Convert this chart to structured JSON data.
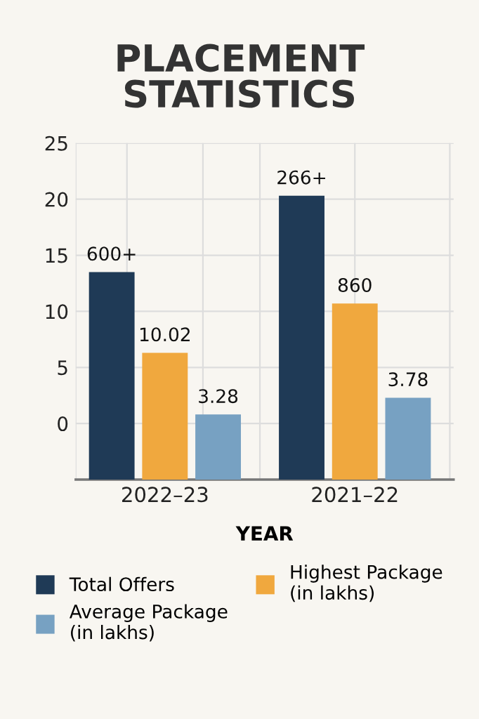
{
  "chart_data": {
    "type": "bar",
    "title": "PLACEMENT\nSTATISTICS",
    "xlabel": "YEAR",
    "categories": [
      "2022–23",
      "2021–22"
    ],
    "series": [
      {
        "name": "Total Offers",
        "color": "#1f3a56",
        "values": [
          18.5,
          25.3
        ],
        "base": [
          -5,
          -5
        ]
      },
      {
        "name": "Highest Package\n(in lakhs)",
        "color": "#f0a83e",
        "values": [
          11.3,
          15.7
        ],
        "base": [
          -5,
          -5
        ]
      },
      {
        "name": "Average Package\n(in lakhs)",
        "color": "#77a1c2",
        "values": [
          5.8,
          7.3
        ],
        "base": [
          -5,
          -5
        ]
      }
    ],
    "annotations": [
      "600+",
      "266+",
      "10.02",
      "860",
      "3.28",
      "3.78"
    ],
    "ylim": [
      -5,
      25
    ],
    "yticks": [
      0,
      5,
      10,
      15,
      20,
      25
    ],
    "grid": true,
    "legend": "bottom"
  }
}
